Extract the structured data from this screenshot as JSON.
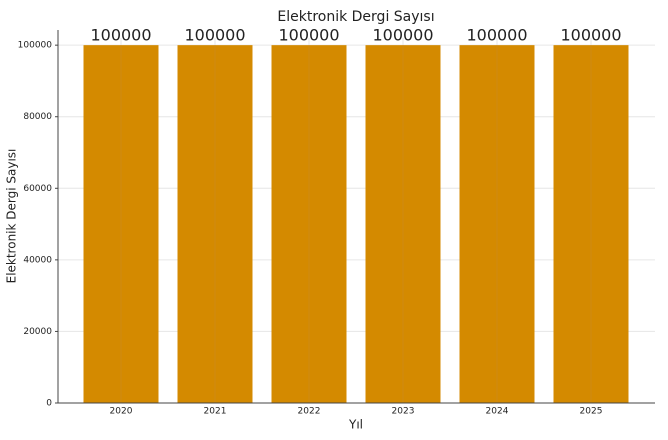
{
  "chart_data": {
    "type": "bar",
    "title": "Elektronik Dergi Sayısı",
    "x_label": "Yıl",
    "y_label": "Elektronik Dergi Sayısı",
    "categories": [
      "2020",
      "2021",
      "2022",
      "2023",
      "2024",
      "2025"
    ],
    "values": [
      100000,
      100000,
      100000,
      100000,
      100000,
      100000
    ],
    "color": "#d48a00",
    "ylim": [
      0,
      102000
    ],
    "yticks": [
      0,
      20000,
      40000,
      60000,
      80000,
      100000
    ],
    "grid": true
  }
}
